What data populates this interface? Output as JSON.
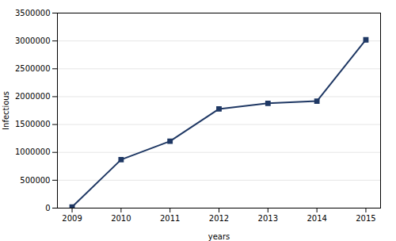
{
  "chart_data": {
    "type": "line",
    "x": [
      2009,
      2010,
      2011,
      2012,
      2013,
      2014,
      2015
    ],
    "values": [
      20000,
      870000,
      1200000,
      1780000,
      1880000,
      1920000,
      3020000
    ],
    "color": "#1F3864",
    "marker": "square",
    "xlabel": "years",
    "ylabel": "Infectious",
    "xlim": [
      2008.7,
      2015.3
    ],
    "xticks": [
      2009,
      2010,
      2011,
      2012,
      2013,
      2014,
      2015
    ],
    "ylim": [
      0,
      3500000
    ],
    "yticks": [
      0,
      500000,
      1000000,
      1500000,
      2000000,
      2500000,
      3000000,
      3500000
    ],
    "grid": "y"
  }
}
